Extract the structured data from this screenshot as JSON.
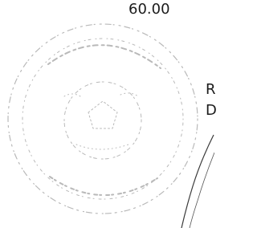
{
  "amount": "60.00",
  "fragments": [
    "R",
    "D"
  ]
}
